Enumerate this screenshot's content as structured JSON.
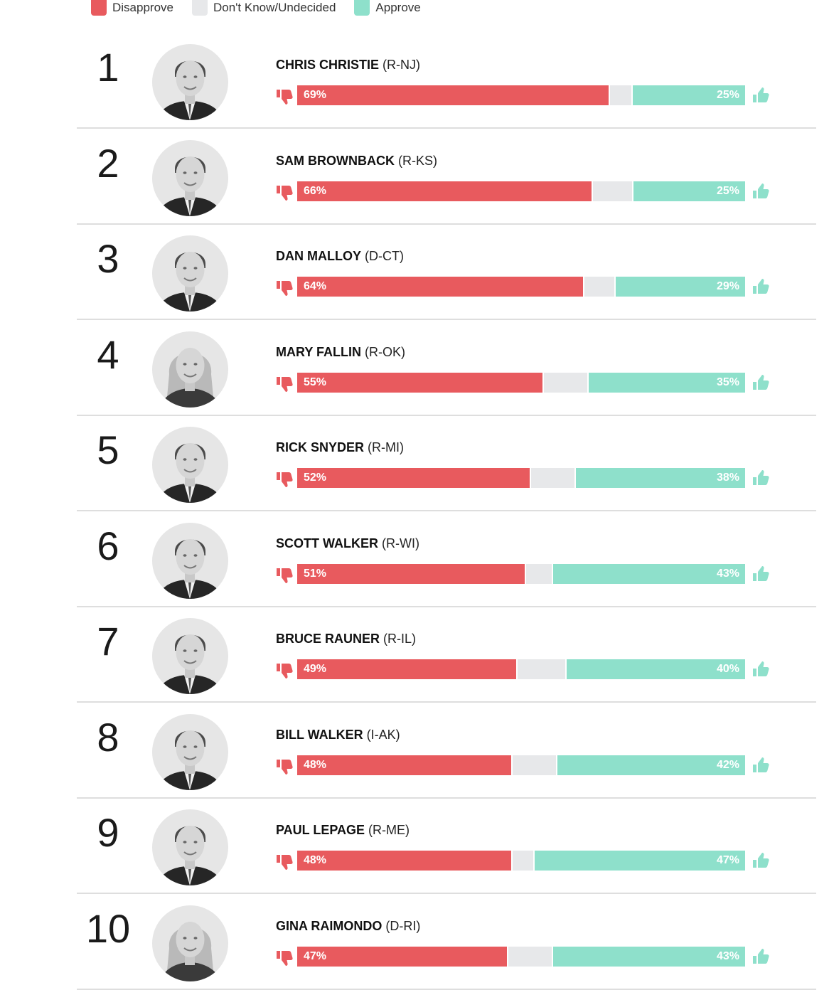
{
  "legend": {
    "disapprove_label": "Disapprove",
    "undecided_label": "Don't Know/Undecided",
    "approve_label": "Approve"
  },
  "colors": {
    "disapprove": "#e85a5e",
    "undecided": "#e7e8ea",
    "approve": "#8ee0cb"
  },
  "chart_data": {
    "type": "bar",
    "stacked": true,
    "orientation": "horizontal",
    "categories": [
      "CHRIS CHRISTIE",
      "SAM BROWNBACK",
      "DAN MALLOY",
      "MARY FALLIN",
      "RICK SNYDER",
      "SCOTT WALKER",
      "BRUCE RAUNER",
      "BILL WALKER",
      "PAUL LEPAGE",
      "GINA RAIMONDO"
    ],
    "series": [
      {
        "name": "Disapprove",
        "values": [
          69,
          66,
          64,
          55,
          52,
          51,
          49,
          48,
          48,
          47
        ]
      },
      {
        "name": "Don't Know/Undecided",
        "values": [
          5,
          9,
          7,
          10,
          10,
          6,
          11,
          10,
          5,
          10
        ]
      },
      {
        "name": "Approve",
        "values": [
          25,
          25,
          29,
          35,
          38,
          43,
          40,
          42,
          47,
          43
        ]
      }
    ]
  },
  "rows": [
    {
      "rank": "1",
      "name": "CHRIS CHRISTIE",
      "party": "(R-NJ)",
      "disapprove": 69,
      "approve": 25,
      "disapprove_label": "69%",
      "approve_label": "25%",
      "bar_scale": 1.0
    },
    {
      "rank": "2",
      "name": "SAM BROWNBACK",
      "party": "(R-KS)",
      "disapprove": 66,
      "approve": 25,
      "disapprove_label": "66%",
      "approve_label": "25%",
      "bar_scale": 1.0
    },
    {
      "rank": "3",
      "name": "DAN MALLOY",
      "party": "(D-CT)",
      "disapprove": 64,
      "approve": 29,
      "disapprove_label": "64%",
      "approve_label": "29%",
      "bar_scale": 1.0
    },
    {
      "rank": "4",
      "name": "MARY FALLIN",
      "party": "(R-OK)",
      "disapprove": 55,
      "approve": 35,
      "disapprove_label": "55%",
      "approve_label": "35%",
      "bar_scale": 1.0
    },
    {
      "rank": "5",
      "name": "RICK SNYDER",
      "party": "(R-MI)",
      "disapprove": 52,
      "approve": 38,
      "disapprove_label": "52%",
      "approve_label": "38%",
      "bar_scale": 1.0
    },
    {
      "rank": "6",
      "name": "SCOTT WALKER",
      "party": "(R-WI)",
      "disapprove": 51,
      "approve": 43,
      "disapprove_label": "51%",
      "approve_label": "43%",
      "bar_scale": 1.0
    },
    {
      "rank": "7",
      "name": "BRUCE RAUNER",
      "party": "(R-IL)",
      "disapprove": 49,
      "approve": 40,
      "disapprove_label": "49%",
      "approve_label": "40%",
      "bar_scale": 1.0
    },
    {
      "rank": "8",
      "name": "BILL WALKER",
      "party": "(I-AK)",
      "disapprove": 48,
      "approve": 42,
      "disapprove_label": "48%",
      "approve_label": "42%",
      "bar_scale": 1.0
    },
    {
      "rank": "9",
      "name": "PAUL LEPAGE",
      "party": "(R-ME)",
      "disapprove": 48,
      "approve": 47,
      "disapprove_label": "48%",
      "approve_label": "47%",
      "bar_scale": 1.0
    },
    {
      "rank": "10",
      "name": "GINA RAIMONDO",
      "party": "(D-RI)",
      "disapprove": 47,
      "approve": 43,
      "disapprove_label": "47%",
      "approve_label": "43%",
      "bar_scale": 1.0
    }
  ]
}
